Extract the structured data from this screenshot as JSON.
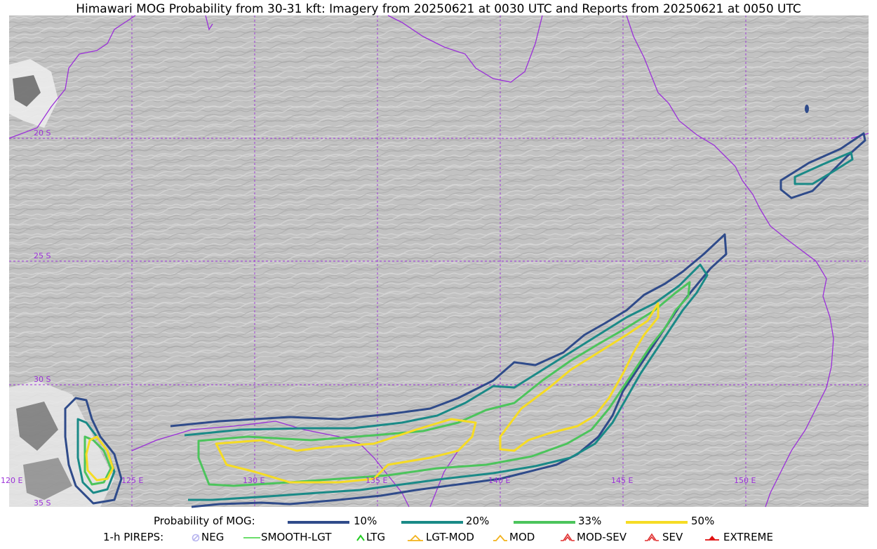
{
  "title": "Himawari MOG Probability from 30-31 kft: Imagery from 20250621 at 0030 UTC and Reports from 20250621 at 0050 UTC",
  "map": {
    "lat_labels": [
      "20 S",
      "25 S",
      "30 S",
      "35 S"
    ],
    "lon_labels": [
      "120 E",
      "125 E",
      "130 E",
      "135 E",
      "140 E",
      "145 E",
      "150 E"
    ],
    "graticule_color": "#9b30d9",
    "coast_color": "#9b30d9",
    "contours": [
      {
        "level": "10%",
        "color": "#2f4b8a"
      },
      {
        "level": "20%",
        "color": "#1a8a87"
      },
      {
        "level": "33%",
        "color": "#4cc45c"
      },
      {
        "level": "50%",
        "color": "#f6dc24"
      }
    ]
  },
  "legend": {
    "prob_label": "Probability of MOG:",
    "prob_items": [
      {
        "label": "10%",
        "color": "#2f4b8a"
      },
      {
        "label": "20%",
        "color": "#1a8a87"
      },
      {
        "label": "33%",
        "color": "#4cc45c"
      },
      {
        "label": "50%",
        "color": "#f6dc24"
      }
    ],
    "pirep_label": "1-h PIREPS:",
    "pirep_items": [
      {
        "label": "NEG",
        "icon": "neg-icon",
        "color": "#b7b4ef"
      },
      {
        "label": "SMOOTH-LGT",
        "icon": "smooth-lgt-icon",
        "color": "#3ad43a"
      },
      {
        "label": "LTG",
        "icon": "ltg-icon",
        "color": "#22cc22"
      },
      {
        "label": "LGT-MOD",
        "icon": "lgt-mod-icon",
        "color": "#f2b21c"
      },
      {
        "label": "MOD",
        "icon": "mod-icon",
        "color": "#f2b21c"
      },
      {
        "label": "MOD-SEV",
        "icon": "mod-sev-icon",
        "color": "#e03030"
      },
      {
        "label": "SEV",
        "icon": "sev-icon",
        "color": "#e03030"
      },
      {
        "label": "EXTREME",
        "icon": "extreme-icon",
        "color": "#e01010"
      }
    ]
  }
}
